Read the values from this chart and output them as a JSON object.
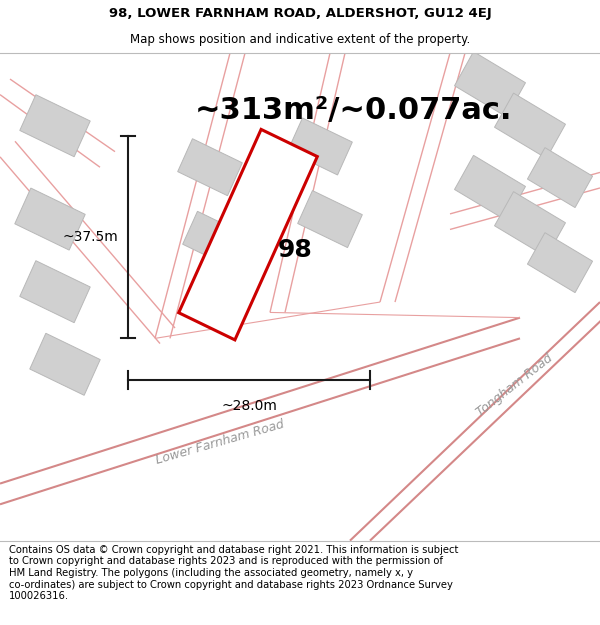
{
  "title_line1": "98, LOWER FARNHAM ROAD, ALDERSHOT, GU12 4EJ",
  "title_line2": "Map shows position and indicative extent of the property.",
  "area_text": "~313m²/~0.077ac.",
  "dim_width": "~28.0m",
  "dim_height": "~37.5m",
  "label_98": "98",
  "road_label1": "Lower Farnham Road",
  "road_label2": "Tongham Road",
  "footer_text": "Contains OS data © Crown copyright and database right 2021. This information is subject\nto Crown copyright and database rights 2023 and is reproduced with the permission of\nHM Land Registry. The polygons (including the associated geometry, namely x, y\nco-ordinates) are subject to Crown copyright and database rights 2023 Ordnance Survey\n100026316.",
  "map_bg": "#f7f3f3",
  "plot_border_color": "#cc0000",
  "road_line_color": "#e8a0a0",
  "road_line_color2": "#d48888",
  "building_color": "#d0d0d0",
  "building_edge_color": "#b8b8b8",
  "dim_line_color": "#1a1a1a",
  "title_fontsize": 9.5,
  "subtitle_fontsize": 8.5,
  "area_fontsize": 22,
  "label_fontsize": 18,
  "road_label_fontsize": 9,
  "footer_fontsize": 7.2
}
